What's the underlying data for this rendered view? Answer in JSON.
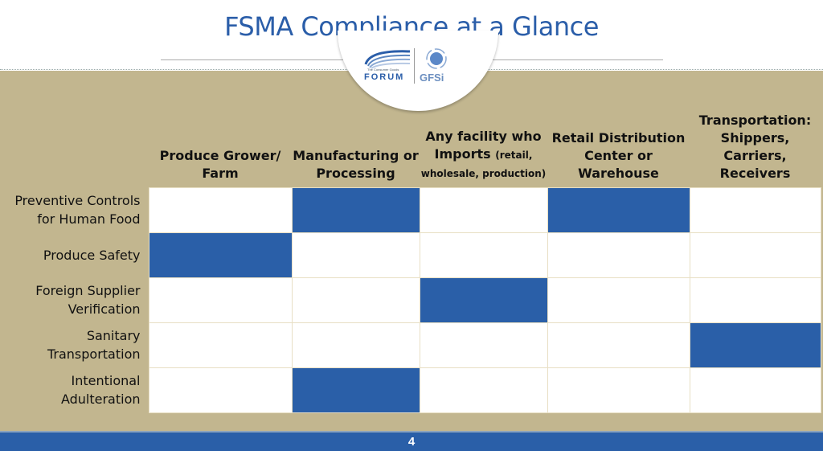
{
  "title": "FSMA Compliance at a Glance",
  "logo": {
    "forum": "FORUM",
    "forum_small": "The Consumer Goods",
    "gfsi": "GFSi"
  },
  "columns": [
    {
      "main": "Produce Grower/ Farm",
      "sub": ""
    },
    {
      "main": "Manufacturing or Processing",
      "sub": ""
    },
    {
      "main": "Any facility who Imports",
      "sub": "(retail, wholesale, production)"
    },
    {
      "main": "Retail Distribution Center or Warehouse",
      "sub": ""
    },
    {
      "main": "Transportation: Shippers, Carriers, Receivers",
      "sub": ""
    }
  ],
  "rows": [
    {
      "label": "Preventive Controls for Human Food",
      "applies": [
        false,
        true,
        false,
        true,
        false
      ]
    },
    {
      "label": "Produce Safety",
      "applies": [
        true,
        false,
        false,
        false,
        false
      ]
    },
    {
      "label": "Foreign Supplier Verification",
      "applies": [
        false,
        false,
        true,
        false,
        false
      ]
    },
    {
      "label": "Sanitary Transportation",
      "applies": [
        false,
        false,
        false,
        false,
        true
      ]
    },
    {
      "label": "Intentional Adulteration",
      "applies": [
        false,
        true,
        false,
        false,
        false
      ]
    }
  ],
  "page_number": "4",
  "colors": {
    "accent": "#2a5fa8",
    "tan": "#c2b68f"
  }
}
